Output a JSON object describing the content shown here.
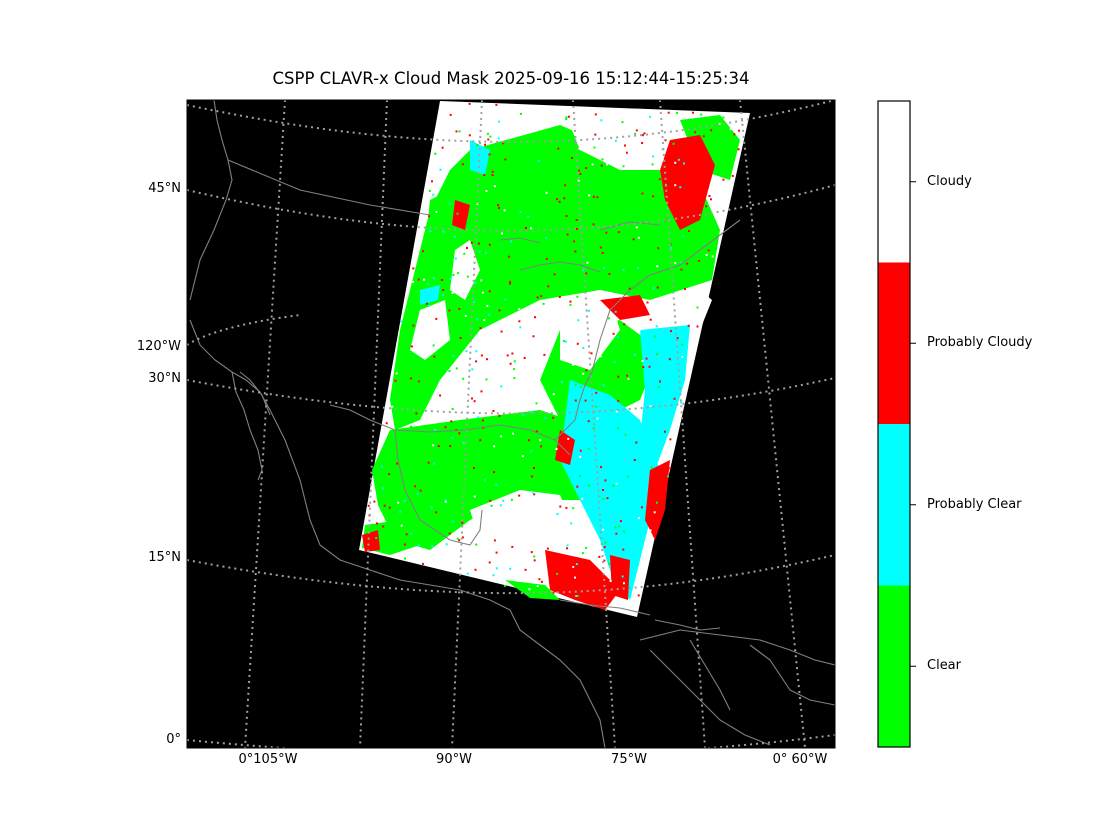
{
  "chart_data": {
    "type": "heatmap",
    "title": "CSPP CLAVR-x Cloud Mask 2025-09-16 15:12:44-15:25:34",
    "map": {
      "background": "#000000",
      "coastline_color": "#808080",
      "graticule_color": "#a0a0a0",
      "grid": true,
      "lat_ticks": [
        "45°N",
        "30°N",
        "15°N",
        "0°"
      ],
      "lon_ticks_left": [
        "120°W"
      ],
      "lon_ticks_bottom": [
        "0°105°W",
        "90°W",
        "75°W",
        "0° 60°W"
      ]
    },
    "categories": [
      {
        "value": 0,
        "label": "Clear",
        "color": "#00ff00"
      },
      {
        "value": 1,
        "label": "Probably Clear",
        "color": "#00ffff"
      },
      {
        "value": 2,
        "label": "Probably Cloudy",
        "color": "#ff0000"
      },
      {
        "value": 3,
        "label": "Cloudy",
        "color": "#ffffff"
      }
    ],
    "colorbar": {
      "placement": "right",
      "order": "bottom-to-top"
    }
  }
}
